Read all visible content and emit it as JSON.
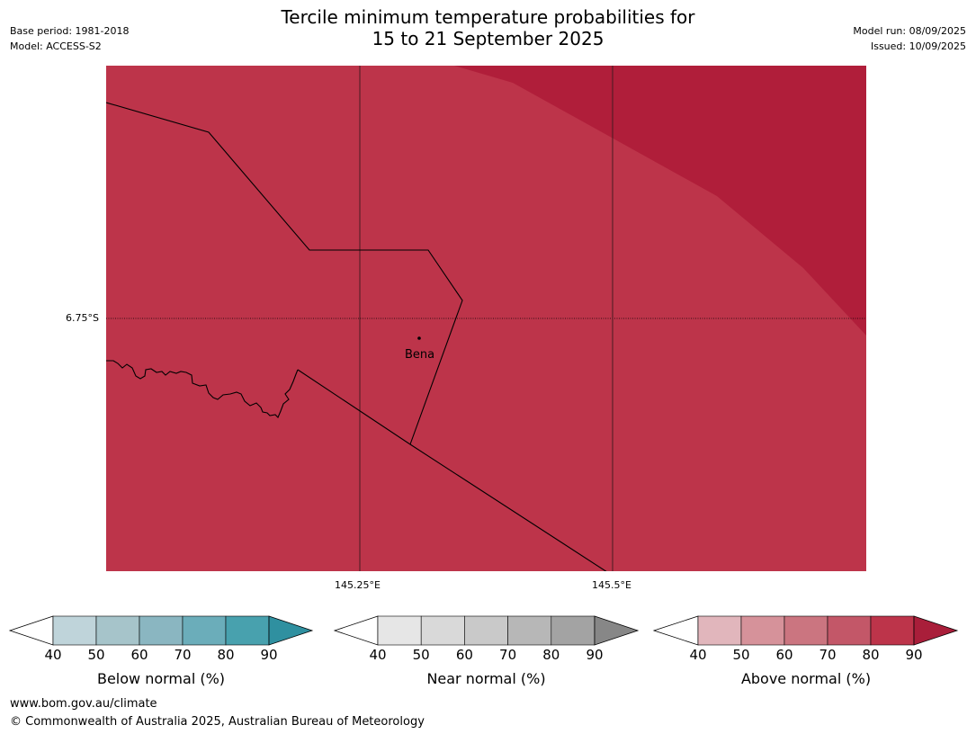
{
  "title": {
    "line1": "Tercile minimum temperature probabilities for",
    "line2": "15 to 21 September 2025"
  },
  "meta_left": {
    "base_period": "Base period: 1981-2018",
    "model": "Model: ACCESS-S2"
  },
  "meta_right": {
    "model_run": "Model run: 08/09/2025",
    "issued": "Issued: 10/09/2025"
  },
  "map": {
    "background_color": "#bd344a",
    "high_band_color": "#b01e3a",
    "latitude_label": "6.75°S",
    "longitude_labels": [
      "145.25°E",
      "145.5°E"
    ],
    "place_name": "Bena"
  },
  "colorbars": [
    {
      "label": "Below normal (%)",
      "ticks": [
        "40",
        "50",
        "60",
        "70",
        "80",
        "90"
      ],
      "colors": [
        "#bfd4da",
        "#a6c4ca",
        "#8ab6c1",
        "#6badba",
        "#48a1ae"
      ],
      "min_color": "#ffffff",
      "max_color": "#2f90a0"
    },
    {
      "label": "Near normal (%)",
      "ticks": [
        "40",
        "50",
        "60",
        "70",
        "80",
        "90"
      ],
      "colors": [
        "#e6e6e6",
        "#d9d9d9",
        "#c9c9c9",
        "#b7b7b7",
        "#a3a3a3"
      ],
      "min_color": "#ffffff",
      "max_color": "#878787"
    },
    {
      "label": "Above normal (%)",
      "ticks": [
        "40",
        "50",
        "60",
        "70",
        "80",
        "90"
      ],
      "colors": [
        "#e1b6bc",
        "#d6929a",
        "#cb7580",
        "#c35768",
        "#bd344a"
      ],
      "min_color": "#ffffff",
      "max_color": "#a91e3a"
    }
  ],
  "footer": {
    "website": "www.bom.gov.au/climate",
    "copyright": "© Commonwealth of Australia 2025, Australian Bureau of Meteorology"
  }
}
